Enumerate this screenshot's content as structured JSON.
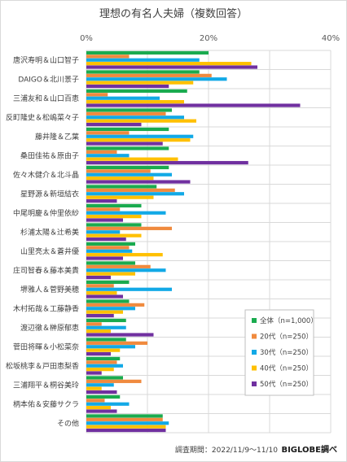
{
  "chart_data": {
    "type": "bar",
    "orientation": "horizontal",
    "title": "理想の有名人夫婦（複数回答）",
    "xlim": [
      0,
      40
    ],
    "ticks": [
      0,
      20,
      40
    ],
    "tick_suffix": "%",
    "grid": true,
    "legend_position": "bottom-right",
    "categories": [
      "唐沢寿明＆山口智子",
      "DAIGO＆北川景子",
      "三浦友和＆山口百恵",
      "反町隆史＆松嶋菜々子",
      "藤井隆＆乙葉",
      "桑田佳祐＆原由子",
      "佐々木健介＆北斗晶",
      "星野源＆新垣結衣",
      "中尾明慶＆仲里依紗",
      "杉浦太陽＆辻希美",
      "山里亮太＆蒼井優",
      "庄司智春＆藤本美貴",
      "堺雅人＆菅野美穂",
      "木村拓哉＆工藤静香",
      "渡辺徹＆榊原郁恵",
      "菅田将暉＆小松菜奈",
      "松坂桃李＆戸田恵梨香",
      "三浦翔平＆桐谷美玲",
      "柄本佑＆安藤サクラ",
      "その他"
    ],
    "series": [
      {
        "name": "全体（n=1,000）",
        "color": "#1aab4f",
        "values": [
          20,
          18.5,
          16.5,
          14,
          13.5,
          13.5,
          13.5,
          11.5,
          9,
          9,
          8,
          8,
          7,
          7,
          6.5,
          6.5,
          5.5,
          6,
          5.5,
          12.5
        ]
      },
      {
        "name": "20代（n=250）",
        "color": "#f08a3e",
        "values": [
          7,
          20.5,
          3.5,
          13,
          7,
          5,
          10.5,
          14.5,
          5.5,
          14,
          7,
          10.5,
          4.5,
          9.5,
          2.5,
          10,
          5,
          9,
          3,
          12.5
        ]
      },
      {
        "name": "30代（n=250）",
        "color": "#12a9e6",
        "values": [
          18.5,
          23,
          12,
          16,
          17.5,
          7,
          14,
          16,
          13,
          5.5,
          7.5,
          13,
          14,
          8,
          6.5,
          8,
          6,
          4.5,
          7,
          13.5
        ]
      },
      {
        "name": "40代（n=250）",
        "color": "#ffc000",
        "values": [
          27,
          17.5,
          16,
          18,
          17,
          15,
          11,
          11,
          9,
          9,
          12.5,
          8,
          5,
          6,
          4,
          5.5,
          4.5,
          2.5,
          4,
          13
        ]
      },
      {
        "name": "50代（n=250）",
        "color": "#7030a0",
        "values": [
          28,
          13.5,
          35,
          9,
          12.5,
          26.5,
          17,
          5,
          6,
          6.5,
          6,
          4,
          6,
          4.5,
          11,
          4,
          2.5,
          5,
          5,
          13
        ]
      }
    ]
  },
  "footer": {
    "period": "調査期間：2022/11/9～11/10",
    "brand": "BIGLOBE調べ"
  }
}
